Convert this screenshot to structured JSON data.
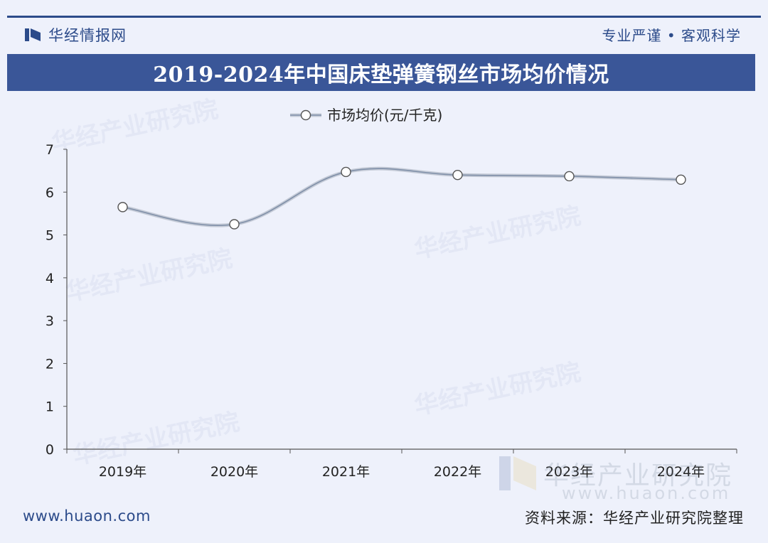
{
  "brand": {
    "name": "华经情报网",
    "slogan": "专业严谨 • 客观科学"
  },
  "footer": {
    "site": "www.huaon.com",
    "source": "资料来源：华经产业研究院整理"
  },
  "watermark": {
    "text": "华经产业研究院",
    "url": "www.huaon.com"
  },
  "colors": {
    "accent": "#3a5698",
    "line": "#7f8fa8",
    "marker_fill": "#ffffff",
    "background": "#eef1fb"
  },
  "chart_data": {
    "type": "line",
    "title": "2019-2024年中国床垫弹簧钢丝市场均价情况",
    "xlabel": "",
    "ylabel": "",
    "categories": [
      "2019年",
      "2020年",
      "2021年",
      "2022年",
      "2023年",
      "2024年"
    ],
    "series": [
      {
        "name": "市场均价(元/千克)",
        "values": [
          5.65,
          5.25,
          6.47,
          6.4,
          6.37,
          6.29
        ]
      }
    ],
    "ylim": [
      0,
      7
    ],
    "yticks": [
      "0",
      "1",
      "2",
      "3",
      "4",
      "5",
      "6",
      "7"
    ],
    "legend": "top-center",
    "grid": false
  }
}
